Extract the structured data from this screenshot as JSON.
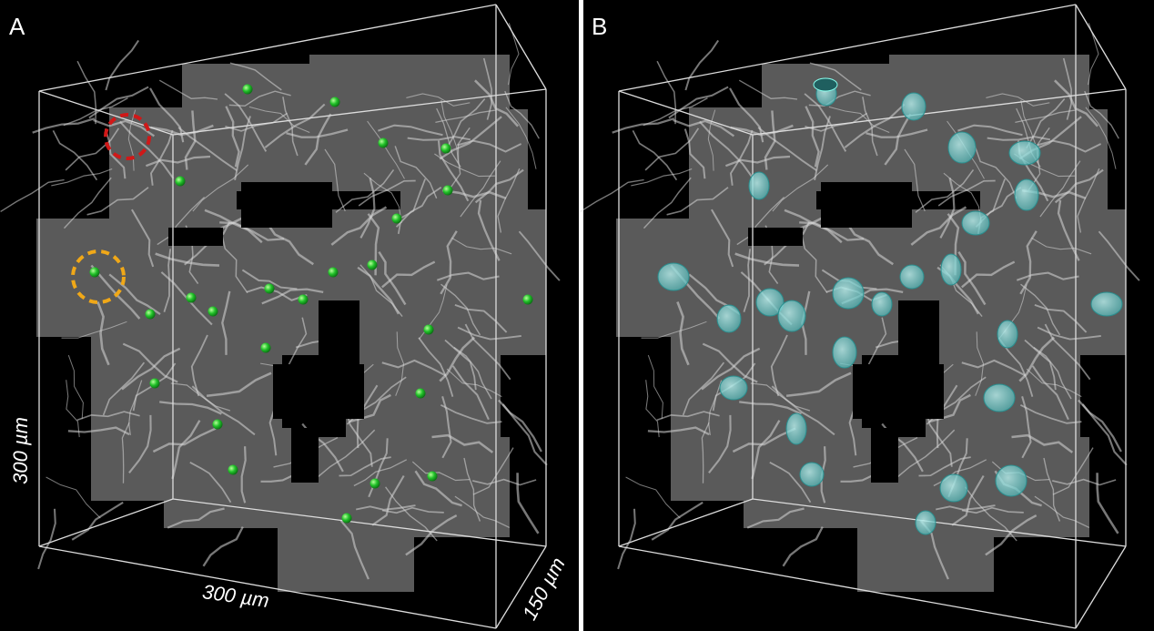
{
  "panels": [
    {
      "label": "A",
      "scale_labels": {
        "height": "300 µm",
        "width": "300 µm",
        "depth": "150 µm"
      }
    },
    {
      "label": "B"
    }
  ]
}
